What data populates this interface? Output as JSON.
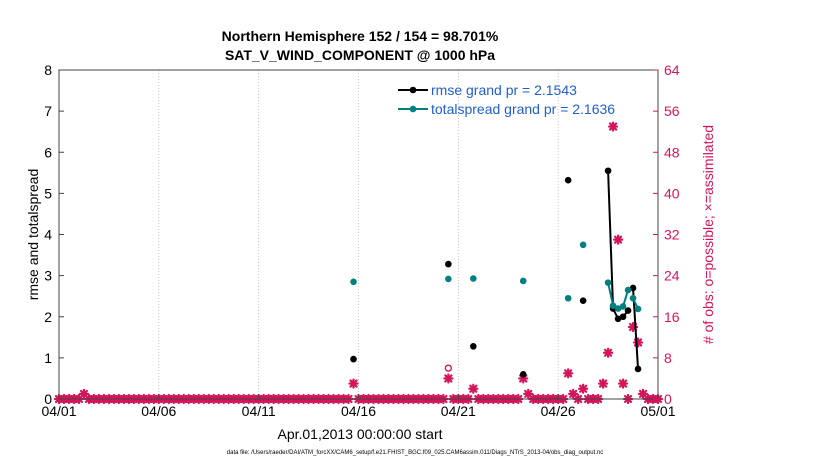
{
  "titles": {
    "line1": "Northern Hemisphere 152 / 154 = 98.701%",
    "line2": "SAT_V_WIND_COMPONENT @ 1000 hPa"
  },
  "footer": "data file: /Users/raeder/DAI/ATM_forcXX/CAM6_setup/f.e21.FHIST_BGC.f09_025.CAM6assim.011/Diags_NTrS_2013-04/obs_diag_output.nc",
  "colors": {
    "rmse": "#000000",
    "spread": "#008080",
    "obs": "#d6145a",
    "legend_text": "#1f5fd1"
  },
  "chart_data": {
    "type": "line",
    "xlabel": "Apr.01,2013 00:00:00 start",
    "ylabel": "rmse and totalspread",
    "y2label": "# of obs: o=possible; ×=assimilated",
    "xlim": [
      0,
      30
    ],
    "ylim": [
      0,
      8
    ],
    "y2lim": [
      0,
      64
    ],
    "xticks": [
      0,
      5,
      10,
      15,
      20,
      25,
      30
    ],
    "xtick_labels": [
      "04/01",
      "04/06",
      "04/11",
      "04/16",
      "04/21",
      "04/26",
      "05/01"
    ],
    "yticks": [
      0,
      1,
      2,
      3,
      4,
      5,
      6,
      7,
      8
    ],
    "y2ticks": [
      0,
      8,
      16,
      24,
      32,
      40,
      48,
      56,
      64
    ],
    "legend": [
      {
        "name": "rmse grand pr = 2.1543",
        "color": "#000000"
      },
      {
        "name": "totalspread grand pr = 2.1636",
        "color": "#008080"
      }
    ],
    "series": [
      {
        "name": "rmse",
        "points": [
          [
            14.75,
            0.97
          ],
          [
            19.5,
            3.28
          ],
          [
            20.75,
            1.28
          ],
          [
            23.25,
            0.6
          ],
          [
            25.5,
            5.32
          ],
          [
            26.25,
            2.39
          ],
          [
            27.5,
            5.55
          ],
          [
            27.75,
            2.2
          ],
          [
            28.0,
            1.95
          ],
          [
            28.25,
            2.0
          ],
          [
            28.5,
            2.15
          ],
          [
            28.75,
            2.7
          ],
          [
            29.0,
            0.73
          ]
        ]
      },
      {
        "name": "totalspread",
        "points": [
          [
            14.75,
            2.85
          ],
          [
            19.5,
            2.92
          ],
          [
            20.75,
            2.93
          ],
          [
            23.25,
            2.87
          ],
          [
            25.5,
            2.45
          ],
          [
            26.25,
            3.75
          ],
          [
            27.5,
            2.83
          ],
          [
            27.75,
            2.27
          ],
          [
            28.0,
            2.2
          ],
          [
            28.25,
            2.25
          ],
          [
            28.5,
            2.65
          ],
          [
            28.75,
            2.45
          ],
          [
            29.0,
            2.19
          ]
        ]
      }
    ],
    "segments": [
      {
        "series": "rmse",
        "x": [
          27.5,
          27.75,
          28.0,
          28.25,
          28.5
        ]
      },
      {
        "series": "rmse",
        "x": [
          28.75,
          29.0
        ]
      },
      {
        "series": "totalspread",
        "x": [
          27.5,
          27.75,
          28.0,
          28.25,
          28.5
        ]
      },
      {
        "series": "totalspread",
        "x": [
          28.75,
          29.0
        ]
      }
    ],
    "obs_nonzero": [
      [
        1.25,
        1
      ],
      [
        14.75,
        3
      ],
      [
        19.5,
        4
      ],
      [
        20.75,
        2
      ],
      [
        23.25,
        4
      ],
      [
        23.5,
        1
      ],
      [
        25.5,
        5
      ],
      [
        25.75,
        1
      ],
      [
        26.25,
        2
      ],
      [
        27.25,
        3
      ],
      [
        27.5,
        9
      ],
      [
        27.75,
        53
      ],
      [
        28.0,
        31
      ],
      [
        28.25,
        3
      ],
      [
        28.75,
        14
      ],
      [
        29.0,
        11
      ],
      [
        29.25,
        1
      ]
    ],
    "obs_possible_markers": [
      [
        19.5,
        6
      ]
    ],
    "obs_spacing_days": 0.25,
    "obs_range": [
      0,
      30
    ]
  }
}
